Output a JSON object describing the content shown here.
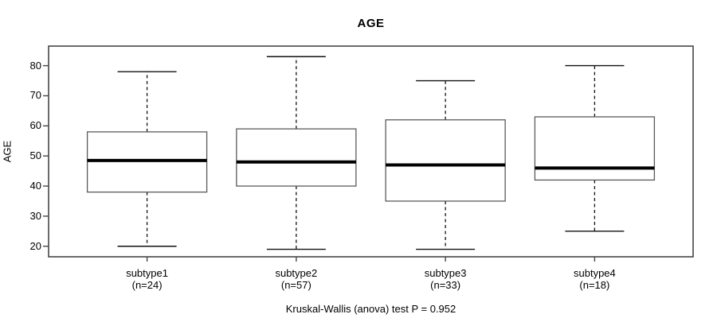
{
  "title": "AGE",
  "colors": {
    "background": "#ffffff",
    "frame": "#454545",
    "box_border": "#5a5a5a",
    "whisker": "#111111",
    "median": "#000000",
    "text": "#000000"
  },
  "chart_data": {
    "type": "boxplot",
    "title": "AGE",
    "ylabel": "AGE",
    "xlabel": "",
    "ylim": [
      16.5,
      86.5
    ],
    "yticks": [
      20,
      30,
      40,
      50,
      60,
      70,
      80
    ],
    "grid": false,
    "legend": null,
    "categories": [
      "subtype1",
      "subtype2",
      "subtype3",
      "subtype4"
    ],
    "counts": [
      24,
      57,
      33,
      18
    ],
    "x_tick_labels": [
      {
        "line1": "subtype1",
        "line2": "(n=24)"
      },
      {
        "line1": "subtype2",
        "line2": "(n=57)"
      },
      {
        "line1": "subtype3",
        "line2": "(n=33)"
      },
      {
        "line1": "subtype4",
        "line2": "(n=18)"
      }
    ],
    "series": [
      {
        "name": "subtype1",
        "n": 24,
        "low": 20,
        "q1": 38,
        "median": 48.5,
        "q3": 58,
        "high": 78
      },
      {
        "name": "subtype2",
        "n": 57,
        "low": 19,
        "q1": 40,
        "median": 48,
        "q3": 59,
        "high": 83
      },
      {
        "name": "subtype3",
        "n": 33,
        "low": 19,
        "q1": 35,
        "median": 47,
        "q3": 62,
        "high": 75
      },
      {
        "name": "subtype4",
        "n": 18,
        "low": 25,
        "q1": 42,
        "median": 46,
        "q3": 63,
        "high": 80
      }
    ],
    "caption": "Kruskal-Wallis (anova) test P = 0.952"
  }
}
